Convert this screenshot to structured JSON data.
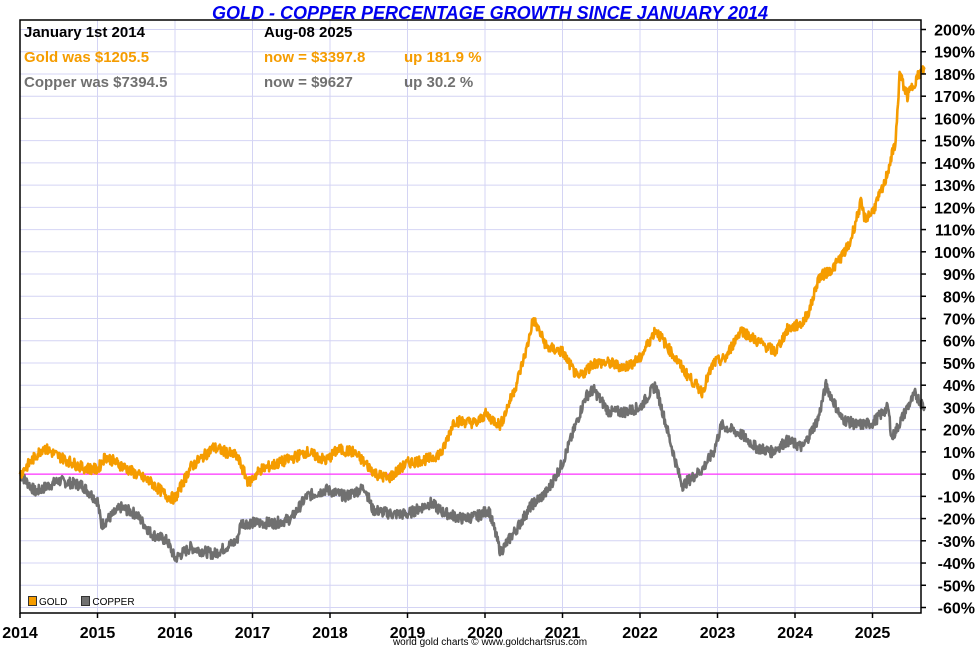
{
  "chart_data": {
    "type": "line",
    "title": "GOLD - COPPER PERCENTAGE GROWTH SINCE JANUARY 2014",
    "xlabel": "",
    "ylabel": "",
    "xlim": [
      2014,
      2025.67
    ],
    "ylim": [
      -60,
      200
    ],
    "grid": true,
    "legend_position": "bottom-left",
    "x_ticks": [
      "2014",
      "2015",
      "2016",
      "2017",
      "2018",
      "2019",
      "2020",
      "2021",
      "2022",
      "2023",
      "2024",
      "2025"
    ],
    "y_ticks": [
      "200%",
      "190%",
      "180%",
      "170%",
      "160%",
      "150%",
      "140%",
      "130%",
      "120%",
      "110%",
      "100%",
      "90%",
      "80%",
      "70%",
      "60%",
      "50%",
      "40%",
      "30%",
      "20%",
      "10%",
      "0%",
      "-10%",
      "-20%",
      "-30%",
      "-40%",
      "-50%",
      "-60%"
    ],
    "colors": {
      "gold": "#f59c00",
      "copper": "#707070",
      "zero": "#ff33ff",
      "grid": "#d4d4f4",
      "title": "#0000ee"
    },
    "series": [
      {
        "name": "GOLD",
        "x": [
          2014.0,
          2014.15,
          2014.3,
          2014.5,
          2014.8,
          2015.0,
          2015.1,
          2015.3,
          2015.5,
          2015.7,
          2015.9,
          2016.0,
          2016.2,
          2016.5,
          2016.8,
          2016.95,
          2017.1,
          2017.5,
          2017.7,
          2017.95,
          2018.1,
          2018.3,
          2018.6,
          2018.75,
          2019.0,
          2019.3,
          2019.45,
          2019.6,
          2019.9,
          2020.0,
          2020.2,
          2020.4,
          2020.55,
          2020.62,
          2020.8,
          2021.0,
          2021.2,
          2021.4,
          2021.6,
          2021.8,
          2022.0,
          2022.2,
          2022.4,
          2022.6,
          2022.8,
          2022.95,
          2023.1,
          2023.3,
          2023.5,
          2023.75,
          2023.9,
          2024.1,
          2024.2,
          2024.3,
          2024.5,
          2024.7,
          2024.85,
          2024.9,
          2025.0,
          2025.15,
          2025.3,
          2025.35,
          2025.45,
          2025.6,
          2025.67
        ],
        "values": [
          0,
          6,
          12,
          8,
          3,
          2,
          8,
          4,
          0,
          -4,
          -10,
          -11,
          3,
          12,
          8,
          -4,
          2,
          7,
          10,
          6,
          11,
          10,
          0,
          -2,
          5,
          7,
          10,
          24,
          23,
          27,
          22,
          40,
          58,
          70,
          57,
          55,
          43,
          50,
          50,
          48,
          52,
          65,
          55,
          45,
          37,
          50,
          52,
          65,
          60,
          55,
          65,
          68,
          75,
          88,
          93,
          103,
          122,
          115,
          118,
          130,
          150,
          180,
          170,
          180,
          182
        ]
      },
      {
        "name": "COPPER",
        "x": [
          2014.0,
          2014.2,
          2014.5,
          2014.8,
          2015.0,
          2015.05,
          2015.3,
          2015.5,
          2015.7,
          2015.9,
          2016.0,
          2016.2,
          2016.5,
          2016.8,
          2016.85,
          2017.0,
          2017.3,
          2017.5,
          2017.7,
          2017.95,
          2018.2,
          2018.45,
          2018.55,
          2018.8,
          2019.0,
          2019.3,
          2019.45,
          2019.7,
          2019.9,
          2020.05,
          2020.2,
          2020.4,
          2020.6,
          2020.8,
          2021.0,
          2021.1,
          2021.3,
          2021.4,
          2021.6,
          2021.8,
          2022.0,
          2022.2,
          2022.3,
          2022.5,
          2022.55,
          2022.8,
          2022.95,
          2023.05,
          2023.3,
          2023.5,
          2023.7,
          2023.9,
          2024.1,
          2024.3,
          2024.4,
          2024.6,
          2024.8,
          2025.0,
          2025.2,
          2025.25,
          2025.45,
          2025.55,
          2025.67
        ],
        "values": [
          0,
          -8,
          -3,
          -5,
          -12,
          -23,
          -15,
          -18,
          -27,
          -30,
          -38,
          -33,
          -36,
          -30,
          -22,
          -22,
          -22,
          -20,
          -10,
          -7,
          -10,
          -6,
          -16,
          -18,
          -18,
          -13,
          -17,
          -20,
          -19,
          -16,
          -35,
          -25,
          -14,
          -8,
          5,
          15,
          35,
          38,
          28,
          28,
          30,
          40,
          27,
          0,
          -5,
          2,
          10,
          22,
          18,
          12,
          10,
          15,
          12,
          25,
          40,
          25,
          22,
          23,
          30,
          16,
          30,
          36,
          30
        ]
      }
    ],
    "annotations": {
      "start_label": "January 1st 2014",
      "end_label": "Aug-08  2025",
      "gold_start": "Gold was $1205.5",
      "gold_now": "now = $3397.8",
      "gold_change": "up 181.9 %",
      "copper_start": "Copper was $7394.5",
      "copper_now": "now = $9627",
      "copper_change": "up 30.2 %"
    },
    "legend": [
      "GOLD",
      "COPPER"
    ],
    "credit": "world gold charts © www.goldchartsrus.com"
  }
}
